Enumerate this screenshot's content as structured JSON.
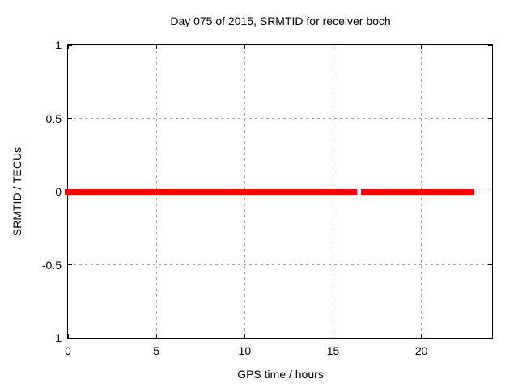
{
  "chart_data": {
    "type": "line",
    "title": "Day 075 of 2015, SRMTID for receiver boch",
    "xlabel": "GPS time / hours",
    "ylabel": "SRMTID / TECUs",
    "xlim": [
      0,
      24
    ],
    "ylim": [
      -1,
      1
    ],
    "xticks": [
      0,
      5,
      10,
      15,
      20
    ],
    "xtick_labels": [
      "0",
      "5",
      "10",
      "15",
      "20"
    ],
    "yticks": [
      1,
      0.5,
      0,
      -0.5,
      -1
    ],
    "ytick_labels": [
      "1",
      "0.5",
      "0",
      "-0.5",
      "-1"
    ],
    "grid": true,
    "legend": "none",
    "series": [
      {
        "name": "SRMTID",
        "color": "#ff0000",
        "value": 0,
        "line_thickness_px": 7,
        "segments": [
          [
            0.0,
            16.35
          ],
          [
            16.58,
            23.0
          ]
        ]
      }
    ],
    "colors": {
      "line": "#ff0000",
      "grid": "#a0a0a0",
      "border": "#000000",
      "text": "#000000"
    }
  }
}
